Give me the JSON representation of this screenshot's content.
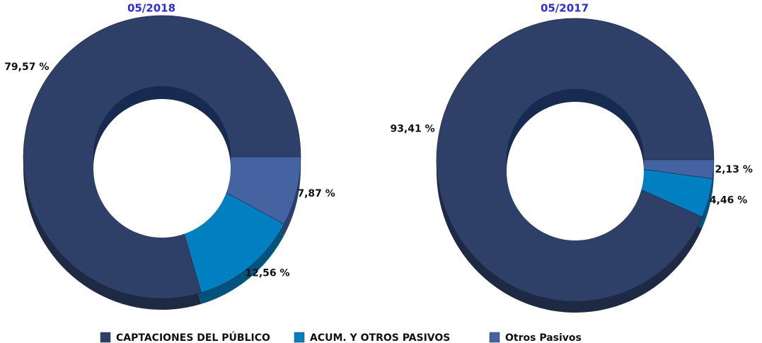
{
  "chart_data": {
    "type": "pie",
    "categories": [
      "CAPTACIONES DEL PÚBLICO",
      "ACUM. Y OTROS PASIVOS",
      "Otros Pasivos"
    ],
    "colors": [
      "#2e4068",
      "#0080c0",
      "#4563a1"
    ],
    "series": [
      {
        "name": "05/2018",
        "values": [
          79.57,
          12.56,
          7.87
        ],
        "value_labels": [
          "79,57 %",
          "12,56 %",
          "7,87 %"
        ]
      },
      {
        "name": "05/2017",
        "values": [
          93.41,
          4.46,
          2.13
        ],
        "value_labels": [
          "93,41 %",
          "4,46 %",
          "2,13 %"
        ]
      }
    ]
  }
}
